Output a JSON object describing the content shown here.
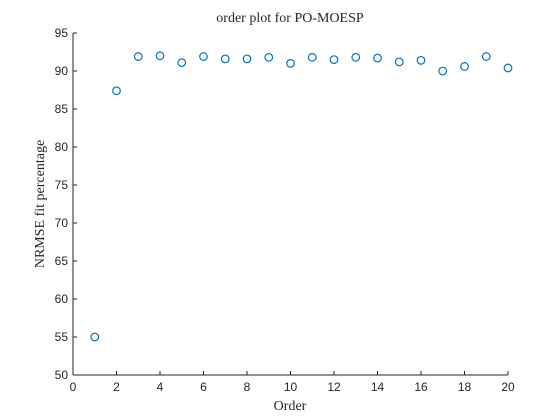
{
  "chart_data": {
    "type": "scatter",
    "title": "order plot for PO-MOESP",
    "xlabel": "Order",
    "ylabel": "NRMSE fit percentage",
    "xlim": [
      0,
      20
    ],
    "ylim": [
      50,
      95
    ],
    "xticks": [
      0,
      2,
      4,
      6,
      8,
      10,
      12,
      14,
      16,
      18,
      20
    ],
    "yticks": [
      50,
      55,
      60,
      65,
      70,
      75,
      80,
      85,
      90,
      95
    ],
    "grid": false,
    "legend": "none",
    "marker": "open-circle",
    "color": "#0072BD",
    "x": [
      1,
      2,
      3,
      4,
      5,
      6,
      7,
      8,
      9,
      10,
      11,
      12,
      13,
      14,
      15,
      16,
      17,
      18,
      19,
      20
    ],
    "y": [
      55.0,
      87.4,
      91.9,
      92.0,
      91.1,
      91.9,
      91.6,
      91.6,
      91.8,
      91.0,
      91.8,
      91.5,
      91.8,
      91.7,
      91.2,
      91.4,
      90.0,
      90.6,
      91.9,
      90.4
    ]
  }
}
